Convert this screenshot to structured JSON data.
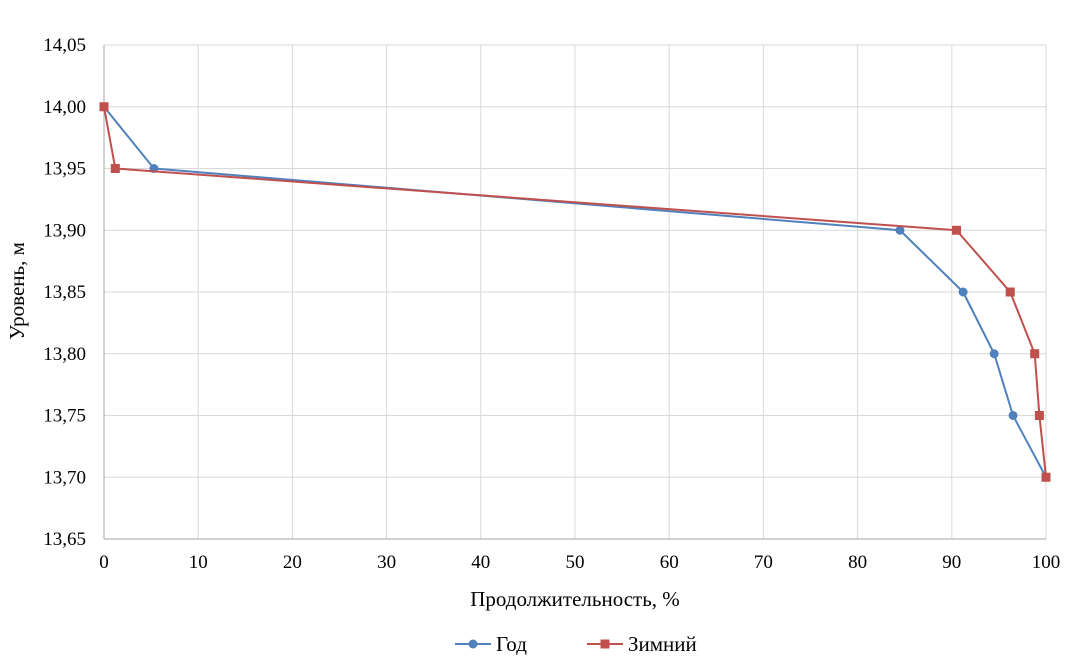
{
  "chart_data": {
    "type": "line",
    "title": "",
    "xlabel": "Продолжительность, %",
    "ylabel": "Уровень, м",
    "xlim": [
      0,
      100
    ],
    "ylim": [
      13.65,
      14.05
    ],
    "x_ticks": [
      0,
      10,
      20,
      30,
      40,
      50,
      60,
      70,
      80,
      90,
      100
    ],
    "x_tick_labels": [
      "0",
      "10",
      "20",
      "30",
      "40",
      "50",
      "60",
      "70",
      "80",
      "90",
      "100"
    ],
    "y_ticks": [
      13.65,
      13.7,
      13.75,
      13.8,
      13.85,
      13.9,
      13.95,
      14.0,
      14.05
    ],
    "y_tick_labels": [
      "13,65",
      "13,70",
      "13,75",
      "13,80",
      "13,85",
      "13,90",
      "13,95",
      "14,00",
      "14,05"
    ],
    "grid": true,
    "legend_position": "bottom",
    "series": [
      {
        "name": "Год",
        "color": "#4f81bd",
        "marker": "circle",
        "points": [
          {
            "x": 0,
            "y": 14.0
          },
          {
            "x": 5.3,
            "y": 13.95
          },
          {
            "x": 84.5,
            "y": 13.9
          },
          {
            "x": 91.2,
            "y": 13.85
          },
          {
            "x": 94.5,
            "y": 13.8
          },
          {
            "x": 96.5,
            "y": 13.75
          },
          {
            "x": 100,
            "y": 13.7
          }
        ]
      },
      {
        "name": "Зимний",
        "color": "#c0504d",
        "marker": "square",
        "points": [
          {
            "x": 0,
            "y": 14.0
          },
          {
            "x": 1.2,
            "y": 13.95
          },
          {
            "x": 90.5,
            "y": 13.9
          },
          {
            "x": 96.2,
            "y": 13.85
          },
          {
            "x": 98.8,
            "y": 13.8
          },
          {
            "x": 99.3,
            "y": 13.75
          },
          {
            "x": 100,
            "y": 13.7
          }
        ]
      }
    ]
  }
}
